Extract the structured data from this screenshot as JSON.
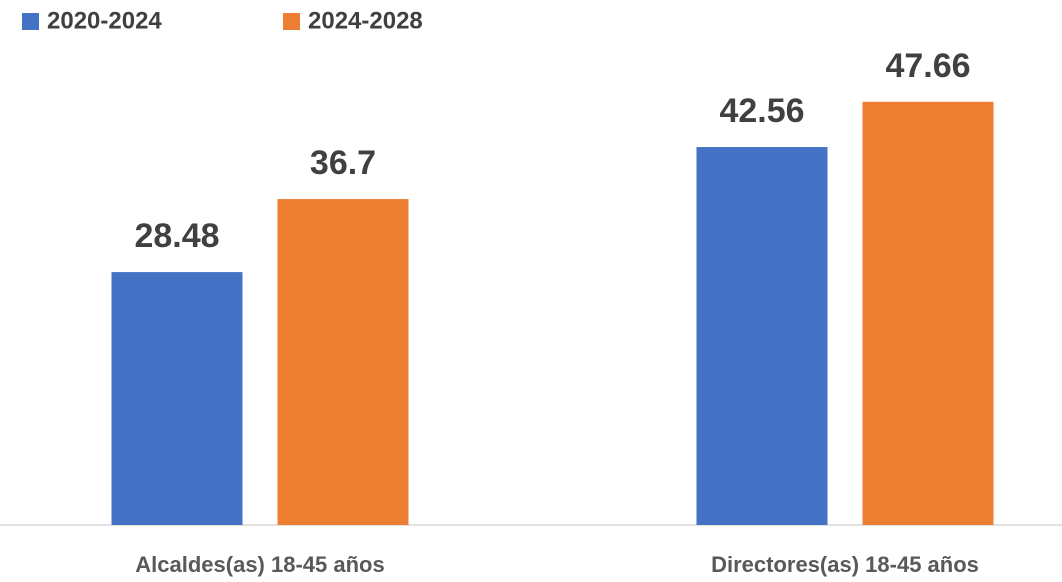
{
  "chart_data": {
    "type": "bar",
    "categories": [
      "Alcaldes(as) 18-45 años",
      "Directores(as) 18-45 años"
    ],
    "series": [
      {
        "name": "2020-2024",
        "color": "#4472c4",
        "values": [
          28.48,
          42.56
        ]
      },
      {
        "name": "2024-2028",
        "color": "#ed7d31",
        "values": [
          36.7,
          47.66
        ]
      }
    ],
    "ylim": [
      0,
      50
    ],
    "legend": "top-left"
  }
}
